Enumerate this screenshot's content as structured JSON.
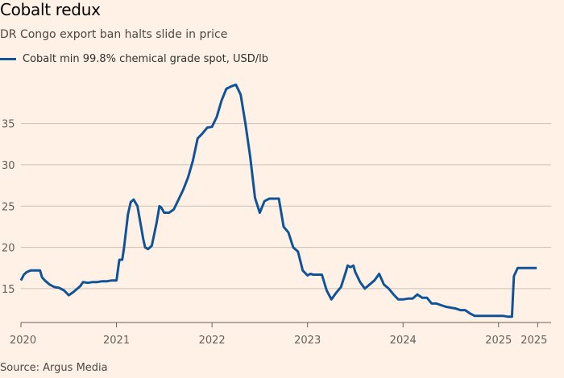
{
  "title": "Cobalt redux",
  "subtitle": "DR Congo export ban halts slide in price",
  "source": "Source: Argus Media",
  "colors": {
    "background": "#fff1e5",
    "series": "#0f5499",
    "grid": "#ccc1b7"
  },
  "chart_data": {
    "type": "line",
    "title": "Cobalt redux",
    "subtitle": "DR Congo export ban halts slide in price",
    "xlabel": "",
    "ylabel": "",
    "ylim": [
      11,
      41
    ],
    "xlim": [
      2020.0,
      2025.55
    ],
    "yticks": [
      15,
      20,
      25,
      30,
      35
    ],
    "xticks": [
      {
        "label": "2020",
        "value": 2020.0
      },
      {
        "label": "2021",
        "value": 2021.0
      },
      {
        "label": "2022",
        "value": 2022.0
      },
      {
        "label": "2023",
        "value": 2023.0
      },
      {
        "label": "2024",
        "value": 2024.0
      },
      {
        "label": "2025",
        "value": 2025.0
      },
      {
        "label": "2025",
        "value": 2025.41
      }
    ],
    "grid": true,
    "legend": "top-left",
    "series": [
      {
        "name": "Cobalt min 99.8% chemical grade spot, USD/lb",
        "x": [
          2020.0,
          2020.03,
          2020.06,
          2020.1,
          2020.2,
          2020.22,
          2020.25,
          2020.3,
          2020.35,
          2020.4,
          2020.45,
          2020.5,
          2020.55,
          2020.62,
          2020.65,
          2020.7,
          2020.75,
          2020.8,
          2020.85,
          2020.9,
          2020.95,
          2021.0,
          2021.03,
          2021.06,
          2021.08,
          2021.1,
          2021.12,
          2021.15,
          2021.18,
          2021.22,
          2021.25,
          2021.28,
          2021.3,
          2021.33,
          2021.37,
          2021.42,
          2021.45,
          2021.47,
          2021.5,
          2021.55,
          2021.6,
          2021.65,
          2021.7,
          2021.75,
          2021.8,
          2021.85,
          2021.9,
          2021.95,
          2022.0,
          2022.05,
          2022.1,
          2022.15,
          2022.2,
          2022.25,
          2022.3,
          2022.35,
          2022.4,
          2022.45,
          2022.5,
          2022.55,
          2022.6,
          2022.65,
          2022.7,
          2022.75,
          2022.8,
          2022.85,
          2022.9,
          2022.95,
          2023.0,
          2023.03,
          2023.06,
          2023.1,
          2023.15,
          2023.2,
          2023.25,
          2023.3,
          2023.35,
          2023.4,
          2023.42,
          2023.45,
          2023.48,
          2023.5,
          2023.55,
          2023.6,
          2023.65,
          2023.7,
          2023.75,
          2023.8,
          2023.85,
          2023.9,
          2023.95,
          2024.0,
          2024.05,
          2024.1,
          2024.15,
          2024.2,
          2024.25,
          2024.3,
          2024.35,
          2024.4,
          2024.45,
          2024.5,
          2024.55,
          2024.6,
          2024.65,
          2024.7,
          2024.75,
          2024.8,
          2024.9,
          2025.0,
          2025.05,
          2025.1,
          2025.12,
          2025.14,
          2025.16,
          2025.2,
          2025.3,
          2025.4
        ],
        "values": [
          16.0,
          16.7,
          17.0,
          17.2,
          17.2,
          16.4,
          16.0,
          15.5,
          15.2,
          15.1,
          14.8,
          14.2,
          14.6,
          15.3,
          15.8,
          15.7,
          15.8,
          15.8,
          15.9,
          15.9,
          16.0,
          16.0,
          18.5,
          18.5,
          20.0,
          22.0,
          24.0,
          25.5,
          25.8,
          25.0,
          23.0,
          21.0,
          20.0,
          19.8,
          20.2,
          23.0,
          25.0,
          24.8,
          24.2,
          24.2,
          24.6,
          25.8,
          27.0,
          28.5,
          30.5,
          33.2,
          33.8,
          34.5,
          34.6,
          35.8,
          37.8,
          39.2,
          39.5,
          39.7,
          38.5,
          35.0,
          31.0,
          26.0,
          24.2,
          25.6,
          25.9,
          25.9,
          25.9,
          22.5,
          21.8,
          20.0,
          19.5,
          17.2,
          16.6,
          16.8,
          16.7,
          16.7,
          16.7,
          14.8,
          13.7,
          14.5,
          15.2,
          17.0,
          17.8,
          17.6,
          17.8,
          17.0,
          15.8,
          15.0,
          15.5,
          16.0,
          16.8,
          15.5,
          15.0,
          14.3,
          13.7,
          13.7,
          13.8,
          13.8,
          14.3,
          13.9,
          13.9,
          13.2,
          13.2,
          13.0,
          12.8,
          12.7,
          12.6,
          12.4,
          12.4,
          12.0,
          11.7,
          11.7,
          11.7,
          11.7,
          11.7,
          11.6,
          11.6,
          11.6,
          16.5,
          17.5,
          17.5,
          17.5
        ]
      }
    ]
  }
}
